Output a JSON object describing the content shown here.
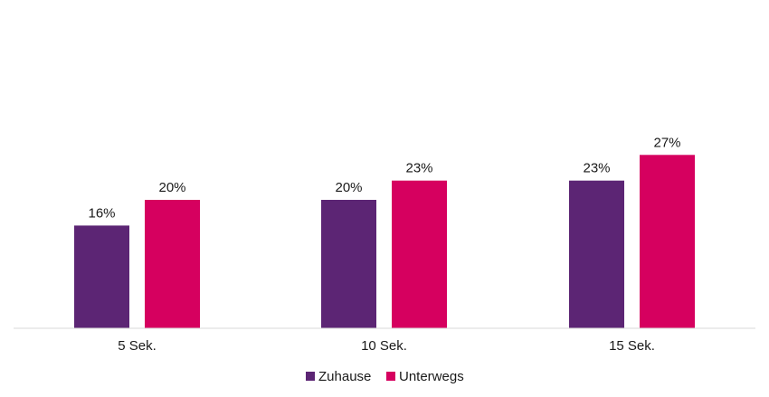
{
  "chart_data": {
    "type": "bar",
    "categories": [
      "5 Sek.",
      "10 Sek.",
      "15 Sek."
    ],
    "series": [
      {
        "name": "Zuhause",
        "values": [
          16,
          20,
          23
        ],
        "color": "#5c2574",
        "labels": [
          "16%",
          "20%",
          "23%"
        ]
      },
      {
        "name": "Unterwegs",
        "values": [
          20,
          23,
          27
        ],
        "color": "#d6005f",
        "labels": [
          "20%",
          "23%",
          "27%"
        ]
      }
    ],
    "ylim": [
      0,
      40
    ],
    "grid": false,
    "legend_position": "bottom-center",
    "axis_color": "#d9d9d9"
  }
}
